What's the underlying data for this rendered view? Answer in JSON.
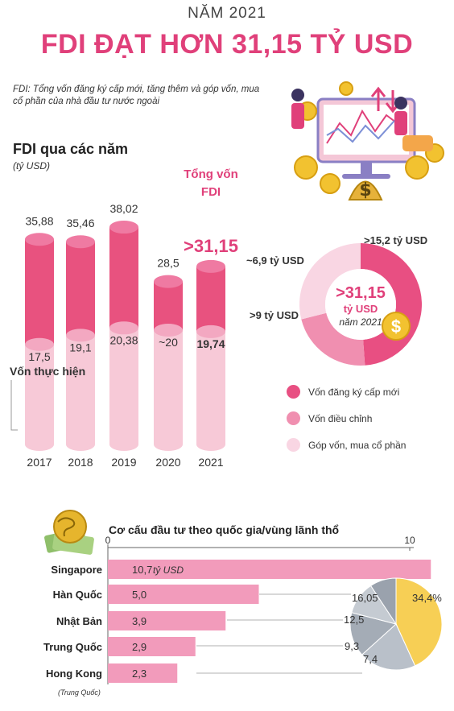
{
  "header": {
    "year_label": "NĂM 2021",
    "headline": "FDI ĐẠT HƠN 31,15 TỶ USD",
    "definition": "FDI: Tổng vốn đăng ký cấp mới, tăng thêm và góp vốn, mua cổ phần của nhà đầu tư nước ngoài"
  },
  "fdi_section": {
    "title": "FDI qua các năm",
    "unit": "(tỷ USD)",
    "realized_label": "Vốn thực hiện",
    "total_caption_line1": "Tổng vốn",
    "total_caption_line2": "FDI"
  },
  "donut": {
    "center_value": ">31,15",
    "center_unit": "tỷ USD",
    "center_year": "năm 2021",
    "labels": [
      ">15,2 tỷ USD",
      "~6,9 tỷ USD",
      ">9 tỷ USD"
    ],
    "legend": [
      "Vốn đăng ký cấp mới",
      "Vốn điều chỉnh",
      "Góp vốn, mua cổ phần"
    ]
  },
  "countries_section": {
    "title": "Cơ cấu đầu tư theo quốc gia/vùng lãnh thổ",
    "note": "(Trung Quốc)",
    "first_unit": "tỷ USD"
  },
  "chart_data": [
    {
      "type": "bar",
      "categories": [
        "2017",
        "2018",
        "2019",
        "2020",
        "2021"
      ],
      "series": [
        {
          "values_text": [
            "35,88",
            "35,46",
            "38,02",
            "28,5",
            ">31,15"
          ],
          "values": [
            35.88,
            35.46,
            38.02,
            28.5,
            31.15
          ]
        },
        {
          "name": "Vốn thực hiện",
          "values_text": [
            "17,5",
            "19,1",
            "20,38",
            "~20",
            "19,74"
          ],
          "values": [
            17.5,
            19.1,
            20.38,
            20,
            19.74
          ]
        }
      ],
      "ylabel": "(tỷ USD)",
      "colors": {
        "total": "#e8527f",
        "realized": "#f7c9d7"
      }
    },
    {
      "type": "pie",
      "labels": [
        "Vốn đăng ký cấp mới",
        "Vốn điều chỉnh",
        "Góp vốn, mua cổ phần"
      ],
      "values": [
        15.2,
        6.9,
        9
      ],
      "value_labels": [
        ">15,2 tỷ USD",
        "~6,9 tỷ USD",
        ">9 tỷ USD"
      ],
      "colors": [
        "#e84f82",
        "#f08fb0",
        "#f9d6e3"
      ]
    },
    {
      "type": "bar",
      "orientation": "horizontal",
      "categories": [
        "Singapore",
        "Hàn Quốc",
        "Nhật Bản",
        "Trung Quốc",
        "Hong Kong"
      ],
      "values": [
        10.7,
        5.0,
        3.9,
        2.9,
        2.3
      ],
      "values_text": [
        "10,7",
        "5,0",
        "3,9",
        "2,9",
        "2,3"
      ],
      "x_ticks": [
        "0",
        "10"
      ],
      "xlim": [
        0,
        10
      ],
      "color": "#f29bbb"
    },
    {
      "type": "pie",
      "values": [
        34.4,
        16.05,
        12.5,
        9.3,
        7.4
      ],
      "value_labels": [
        "34,4%",
        "16,05",
        "12,5",
        "9,3",
        "7,4"
      ],
      "colors": [
        "#f7cf55",
        "#b9c0c9",
        "#a4acb6",
        "#c5cbd2",
        "#9aa2ad"
      ]
    }
  ]
}
